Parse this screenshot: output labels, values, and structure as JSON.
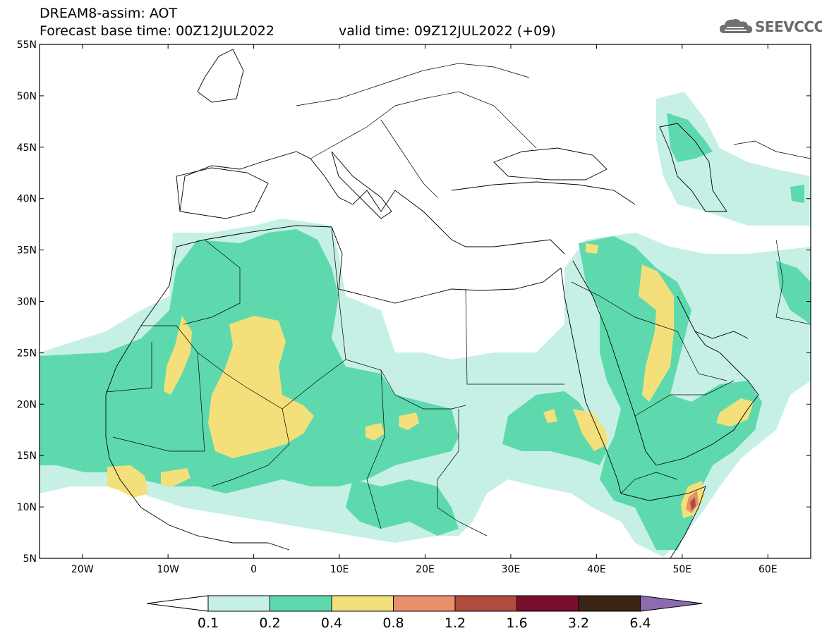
{
  "header": {
    "line1": "DREAM8-assim: AOT",
    "line2": "Forecast base time: 00Z12JUL2022",
    "valid": "valid time: 09Z12JUL2022 (+09)"
  },
  "logo": {
    "text": "SEEVCCC",
    "icon": "cloud-logo-icon"
  },
  "map": {
    "lon_range": [
      -25,
      65
    ],
    "lat_range": [
      5,
      55
    ],
    "lat_labels": [
      "55N",
      "50N",
      "45N",
      "40N",
      "35N",
      "30N",
      "25N",
      "20N",
      "15N",
      "10N",
      "5N"
    ],
    "lat_values": [
      55,
      50,
      45,
      40,
      35,
      30,
      25,
      20,
      15,
      10,
      5
    ],
    "lon_labels": [
      "20W",
      "10W",
      "0",
      "10E",
      "20E",
      "30E",
      "40E",
      "50E",
      "60E"
    ],
    "lon_values": [
      -20,
      -10,
      0,
      10,
      20,
      30,
      40,
      50,
      60
    ]
  },
  "colorbar": {
    "thresholds": [
      "0.1",
      "0.2",
      "0.4",
      "0.8",
      "1.2",
      "1.6",
      "3.2",
      "6.4"
    ],
    "colors": [
      "#c6f0e6",
      "#5ed9ae",
      "#f4e07a",
      "#e8906a",
      "#b04b40",
      "#7a0e2e",
      "#3a2414",
      "#8c6bb1"
    ]
  }
}
